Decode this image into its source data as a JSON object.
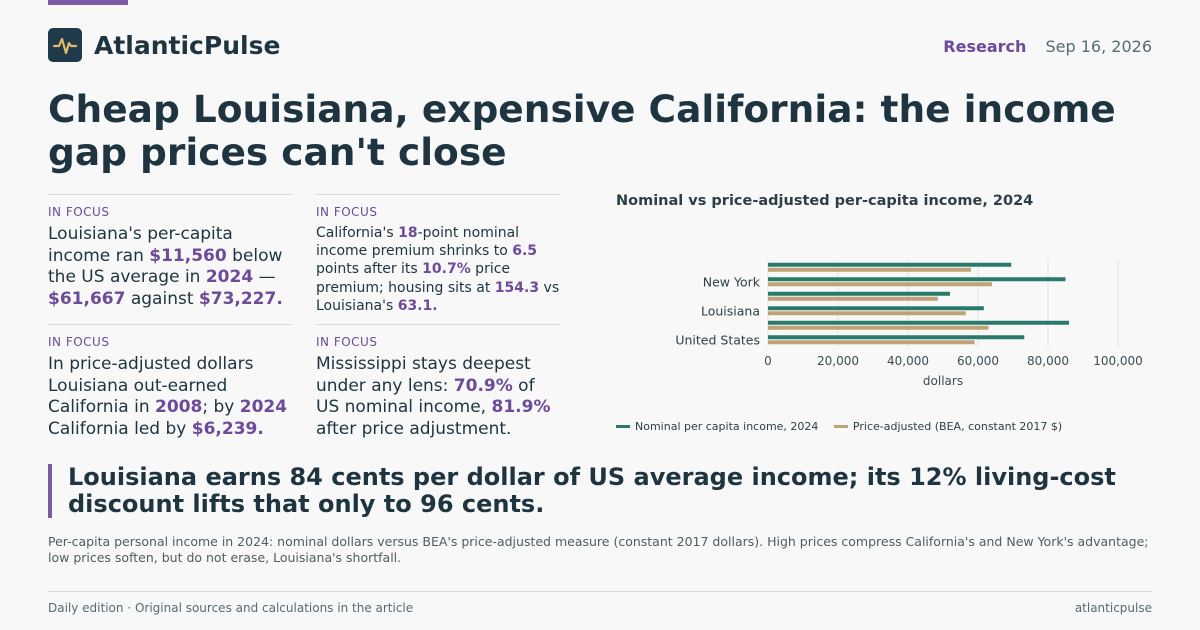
{
  "brand": {
    "name": "AtlanticPulse",
    "accent": "#7b5aa6"
  },
  "header": {
    "section": "Research",
    "date": "Sep 16, 2026"
  },
  "headline": "Cheap Louisiana, expensive California: the income gap prices can't close",
  "focus": [
    {
      "tag": "IN FOCUS",
      "parts": [
        {
          "t": "Louisiana's per-capita income ran "
        },
        {
          "t": "$11,560",
          "h": true
        },
        {
          "t": " below the US average in "
        },
        {
          "t": "2024",
          "h": true
        },
        {
          "t": " — "
        },
        {
          "t": "$61,667",
          "h": true
        },
        {
          "t": " against "
        },
        {
          "t": "$73,227.",
          "h": true
        }
      ]
    },
    {
      "tag": "IN FOCUS",
      "parts": [
        {
          "t": "California's "
        },
        {
          "t": "18",
          "h": true
        },
        {
          "t": "-point nominal income premium shrinks to "
        },
        {
          "t": "6.5",
          "h": true
        },
        {
          "t": " points after its "
        },
        {
          "t": "10.7%",
          "h": true
        },
        {
          "t": " price premium; housing sits at "
        },
        {
          "t": "154.3",
          "h": true
        },
        {
          "t": " vs Louisiana's "
        },
        {
          "t": "63.1.",
          "h": true
        }
      ]
    },
    {
      "tag": "IN FOCUS",
      "parts": [
        {
          "t": "In price-adjusted dollars Louisiana out-earned California in "
        },
        {
          "t": "2008",
          "h": true
        },
        {
          "t": "; by "
        },
        {
          "t": "2024",
          "h": true
        },
        {
          "t": " California led by "
        },
        {
          "t": "$6,239.",
          "h": true
        }
      ]
    },
    {
      "tag": "IN FOCUS",
      "parts": [
        {
          "t": "Mississippi stays deepest under any lens: "
        },
        {
          "t": "70.9%",
          "h": true
        },
        {
          "t": " of US nominal income, "
        },
        {
          "t": "81.9%",
          "h": true
        },
        {
          "t": " after price adjustment."
        }
      ]
    }
  ],
  "chart_data": {
    "type": "bar",
    "orientation": "horizontal",
    "title": "Nominal vs price-adjusted per-capita income, 2024",
    "categories": [
      "",
      "New York",
      "",
      "Louisiana",
      "",
      "United States"
    ],
    "series": [
      {
        "name": "Nominal per capita income, 2024",
        "color": "#2a7a6c",
        "values": [
          69500,
          85000,
          52000,
          61667,
          86000,
          73227
        ]
      },
      {
        "name": "Price-adjusted (BEA, constant 2017 $)",
        "color": "#c1a278",
        "values": [
          58000,
          64000,
          48500,
          56500,
          63000,
          59000
        ]
      }
    ],
    "xlabel": "dollars",
    "xlim": [
      0,
      100000
    ],
    "xticks": [
      0,
      20000,
      40000,
      60000,
      80000,
      100000
    ],
    "xtick_labels": [
      "0",
      "20,000",
      "40,000",
      "60,000",
      "80,000",
      "100,000"
    ],
    "grid": "vertical",
    "legend_position": "bottom"
  },
  "pullquote": "Louisiana earns 84 cents per dollar of US average income; its 12% living-cost discount lifts that only to 96 cents.",
  "caption": "Per-capita personal income in 2024: nominal dollars versus BEA's price-adjusted measure (constant 2017 dollars). High prices compress California's and New York's advantage; low prices soften, but do not erase, Louisiana's shortfall.",
  "footer": {
    "left": "Daily edition · Original sources and calculations in the article",
    "right": "atlanticpulse"
  }
}
